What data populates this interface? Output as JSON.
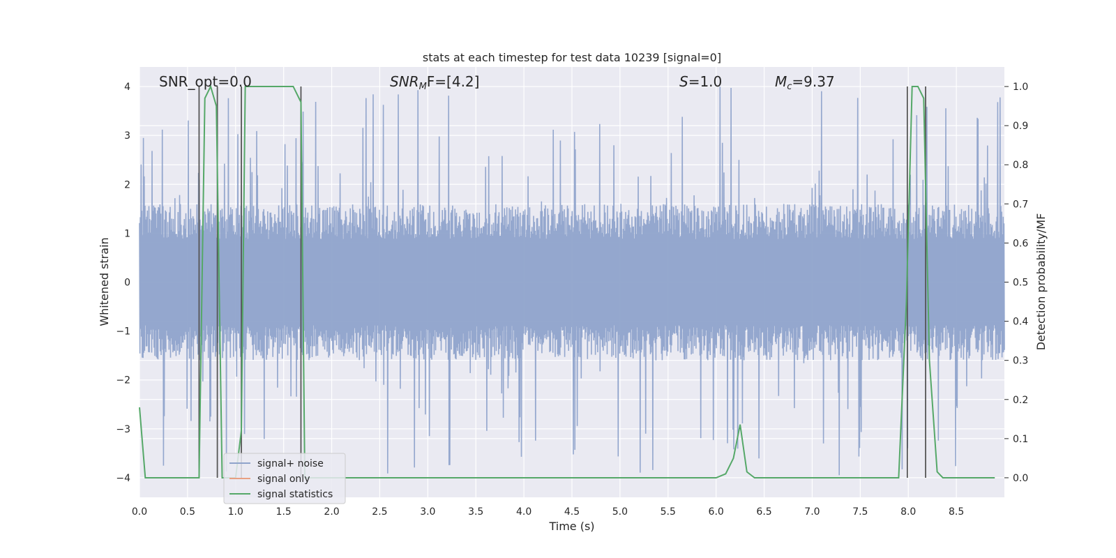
{
  "chart_data": {
    "type": "line",
    "title": "stats at each timestep for test data 10239 [signal=0]",
    "xlabel": "Time (s)",
    "ylabel_left": "Whitened strain",
    "ylabel_right": "Detection probability/MF",
    "xlim": [
      0,
      9.0
    ],
    "ylim_left": [
      -4.4,
      4.4
    ],
    "ylim_right": [
      -0.05,
      1.05
    ],
    "x_ticks": [
      0.0,
      0.5,
      1.0,
      1.5,
      2.0,
      2.5,
      3.0,
      3.5,
      4.0,
      4.5,
      5.0,
      5.5,
      6.0,
      6.5,
      7.0,
      7.5,
      8.0,
      8.5
    ],
    "x_tick_labels": [
      "0.0",
      "0.5",
      "1.0",
      "1.5",
      "2.0",
      "2.5",
      "3.0",
      "3.5",
      "4.0",
      "4.5",
      "5.0",
      "5.5",
      "6.0",
      "6.5",
      "7.0",
      "7.5",
      "8.0",
      "8.5"
    ],
    "left_ticks": [
      -4,
      -3,
      -2,
      -1,
      0,
      1,
      2,
      3,
      4
    ],
    "left_tick_labels": [
      "−4",
      "−3",
      "−2",
      "−1",
      "0",
      "1",
      "2",
      "3",
      "4"
    ],
    "right_ticks": [
      0.0,
      0.1,
      0.2,
      0.3,
      0.4,
      0.5,
      0.6,
      0.7,
      0.8,
      0.9,
      1.0
    ],
    "right_tick_labels": [
      "0.0",
      "0.1",
      "0.2",
      "0.3",
      "0.4",
      "0.5",
      "0.6",
      "0.7",
      "0.8",
      "0.9",
      "1.0"
    ],
    "grid": true,
    "legend_position": "lower-left",
    "annotations": {
      "snr_opt": "SNR_opt=0.0",
      "snr_mf_sym": "SNR",
      "snr_mf_sub": "M",
      "snr_mf_rest": "F=[4.2]",
      "s_sym": "S",
      "s_rest": "=1.0",
      "mc_sym": "M",
      "mc_sub": "c",
      "mc_rest": "=9.37"
    },
    "series": [
      {
        "name": "signal+ noise",
        "axis": "left",
        "color": "#8fa3cb",
        "note_type": "noise",
        "amplitude_typical": 1.6,
        "amplitude_peak": 4.0,
        "x_range": [
          0,
          9.0
        ]
      },
      {
        "name": "signal only",
        "axis": "left",
        "color": "#e8a082",
        "x": [],
        "y": []
      },
      {
        "name": "signal statistics",
        "axis": "right",
        "color": "#55a868",
        "x": [
          0.0,
          0.06,
          0.12,
          0.5,
          0.62,
          0.68,
          0.74,
          0.8,
          0.86,
          0.92,
          1.0,
          1.06,
          1.1,
          1.12,
          1.2,
          1.6,
          1.68,
          1.72,
          1.8,
          6.0,
          6.1,
          6.18,
          6.25,
          6.32,
          6.4,
          7.9,
          7.98,
          8.04,
          8.1,
          8.16,
          8.22,
          8.3,
          8.36,
          8.9
        ],
        "y": [
          0.18,
          0.0,
          0.0,
          0.0,
          0.0,
          0.97,
          1.0,
          0.95,
          0.0,
          0.0,
          0.0,
          0.12,
          1.0,
          1.0,
          1.0,
          1.0,
          0.96,
          0.0,
          0.0,
          0.0,
          0.01,
          0.05,
          0.136,
          0.015,
          0.0,
          0.0,
          0.45,
          1.0,
          1.0,
          0.97,
          0.3,
          0.015,
          0.0,
          0.0
        ]
      }
    ],
    "vertical_markers": [
      0.62,
      0.81,
      1.06,
      1.68,
      7.99,
      8.18
    ],
    "legend": [
      "signal+ noise",
      "signal only",
      "signal statistics"
    ]
  },
  "colors": {
    "axes_bg": "#eaeaf2",
    "grid": "#ffffff",
    "marker": "#555555"
  }
}
